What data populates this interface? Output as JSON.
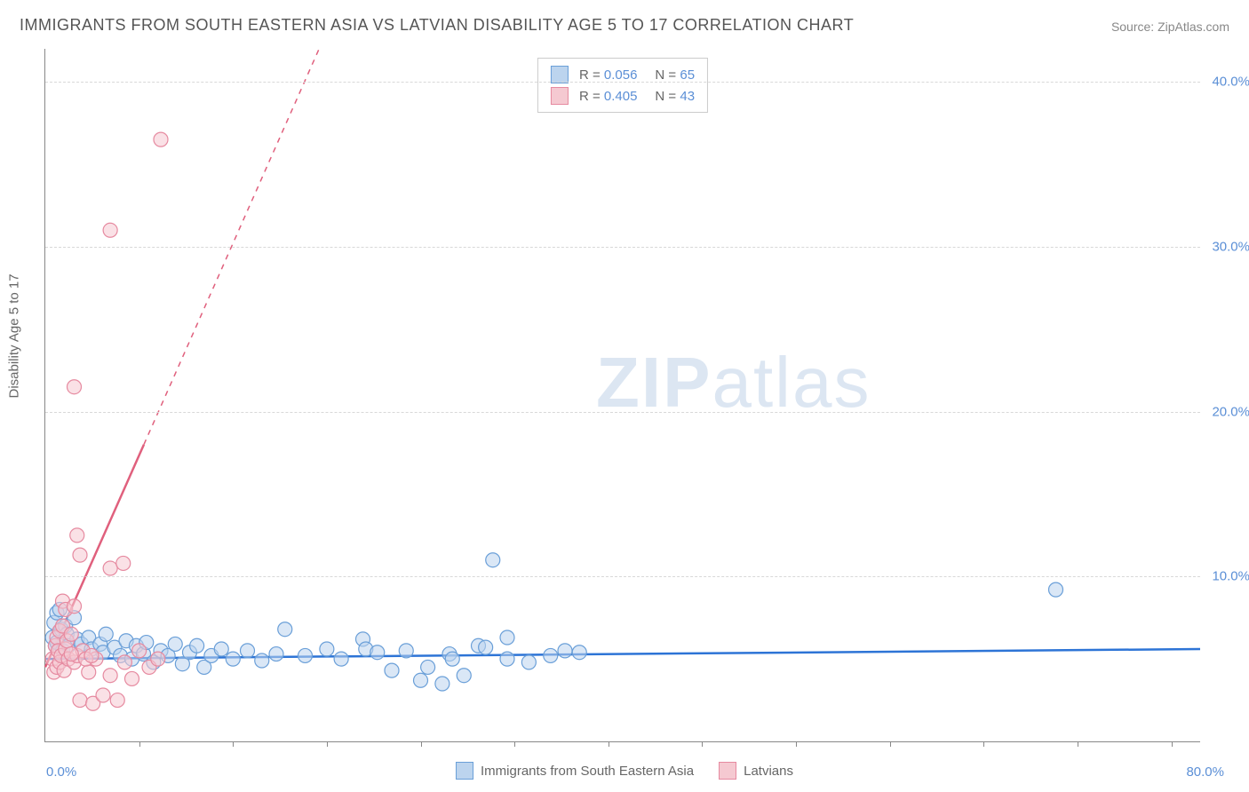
{
  "title": "IMMIGRANTS FROM SOUTH EASTERN ASIA VS LATVIAN DISABILITY AGE 5 TO 17 CORRELATION CHART",
  "source": "Source: ZipAtlas.com",
  "ylabel": "Disability Age 5 to 17",
  "watermark_zip": "ZIP",
  "watermark_atlas": "atlas",
  "chart": {
    "type": "scatter",
    "background_color": "#ffffff",
    "grid_color": "#d8d8d8",
    "axis_color": "#888888",
    "tick_label_color": "#5b8fd6",
    "xlim": [
      0,
      80
    ],
    "ylim": [
      0,
      42
    ],
    "xticks": [
      0,
      40,
      80
    ],
    "xtick_labels": [
      "0.0%",
      "",
      "80.0%"
    ],
    "xtick_minor": [
      6.5,
      13,
      19.5,
      26,
      32.5,
      39,
      45.5,
      52,
      58.5,
      65,
      71.5,
      78
    ],
    "yticks": [
      10,
      20,
      30,
      40
    ],
    "ytick_labels": [
      "10.0%",
      "20.0%",
      "30.0%",
      "40.0%"
    ],
    "marker_radius": 8,
    "marker_opacity": 0.55,
    "series": [
      {
        "name": "Immigrants from South Eastern Asia",
        "color_fill": "#bcd4ee",
        "color_stroke": "#6a9fd8",
        "R": "0.056",
        "N": "65",
        "trend": {
          "x1": 0,
          "y1": 5.0,
          "x2": 80,
          "y2": 5.6,
          "color": "#2d74d6",
          "width": 2.5
        },
        "points": [
          [
            0.5,
            6.3
          ],
          [
            0.6,
            7.2
          ],
          [
            0.7,
            5.8
          ],
          [
            0.8,
            7.8
          ],
          [
            0.8,
            6.0
          ],
          [
            1.0,
            8.0
          ],
          [
            1.1,
            6.8
          ],
          [
            1.2,
            5.5
          ],
          [
            1.4,
            7.0
          ],
          [
            1.5,
            6.5
          ],
          [
            1.6,
            5.8
          ],
          [
            2.0,
            7.5
          ],
          [
            2.2,
            6.2
          ],
          [
            2.5,
            5.9
          ],
          [
            3.0,
            6.3
          ],
          [
            3.2,
            5.6
          ],
          [
            3.8,
            5.9
          ],
          [
            4.0,
            5.4
          ],
          [
            4.2,
            6.5
          ],
          [
            4.8,
            5.7
          ],
          [
            5.2,
            5.2
          ],
          [
            5.6,
            6.1
          ],
          [
            6.0,
            5.0
          ],
          [
            6.3,
            5.8
          ],
          [
            6.8,
            5.3
          ],
          [
            7.0,
            6.0
          ],
          [
            7.5,
            4.8
          ],
          [
            8.0,
            5.5
          ],
          [
            8.5,
            5.2
          ],
          [
            9.0,
            5.9
          ],
          [
            9.5,
            4.7
          ],
          [
            10.0,
            5.4
          ],
          [
            10.5,
            5.8
          ],
          [
            11.0,
            4.5
          ],
          [
            11.5,
            5.2
          ],
          [
            12.2,
            5.6
          ],
          [
            13.0,
            5.0
          ],
          [
            14.0,
            5.5
          ],
          [
            15.0,
            4.9
          ],
          [
            16.0,
            5.3
          ],
          [
            16.6,
            6.8
          ],
          [
            18.0,
            5.2
          ],
          [
            19.5,
            5.6
          ],
          [
            20.5,
            5.0
          ],
          [
            22.0,
            6.2
          ],
          [
            22.2,
            5.6
          ],
          [
            23.0,
            5.4
          ],
          [
            24.0,
            4.3
          ],
          [
            26.0,
            3.7
          ],
          [
            25.0,
            5.5
          ],
          [
            26.5,
            4.5
          ],
          [
            27.5,
            3.5
          ],
          [
            28.0,
            5.3
          ],
          [
            28.2,
            5.0
          ],
          [
            29.0,
            4.0
          ],
          [
            30.0,
            5.8
          ],
          [
            30.5,
            5.7
          ],
          [
            31.0,
            11.0
          ],
          [
            32.0,
            5.0
          ],
          [
            32.0,
            6.3
          ],
          [
            33.5,
            4.8
          ],
          [
            35.0,
            5.2
          ],
          [
            36.0,
            5.5
          ],
          [
            37.0,
            5.4
          ],
          [
            70.0,
            9.2
          ]
        ]
      },
      {
        "name": "Latvians",
        "color_fill": "#f5c9d1",
        "color_stroke": "#e68aa0",
        "R": "0.405",
        "N": "43",
        "trend": {
          "x1": 0,
          "y1": 4.5,
          "x2": 22,
          "y2": 48,
          "color": "#e0607d",
          "width": 2.5
        },
        "points": [
          [
            0.5,
            5.0
          ],
          [
            0.6,
            4.2
          ],
          [
            0.7,
            5.8
          ],
          [
            0.8,
            6.3
          ],
          [
            0.8,
            4.5
          ],
          [
            0.9,
            5.5
          ],
          [
            1.0,
            6.7
          ],
          [
            1.0,
            4.8
          ],
          [
            1.1,
            5.2
          ],
          [
            1.2,
            7.0
          ],
          [
            1.3,
            4.3
          ],
          [
            1.4,
            5.6
          ],
          [
            1.5,
            6.1
          ],
          [
            1.6,
            5.0
          ],
          [
            1.8,
            6.5
          ],
          [
            2.0,
            4.8
          ],
          [
            2.2,
            5.2
          ],
          [
            2.4,
            2.5
          ],
          [
            2.6,
            5.5
          ],
          [
            3.0,
            4.2
          ],
          [
            3.3,
            2.3
          ],
          [
            3.5,
            5.0
          ],
          [
            4.0,
            2.8
          ],
          [
            4.5,
            4.0
          ],
          [
            5.0,
            2.5
          ],
          [
            5.5,
            4.8
          ],
          [
            6.0,
            3.8
          ],
          [
            7.2,
            4.5
          ],
          [
            1.2,
            8.5
          ],
          [
            1.4,
            8.0
          ],
          [
            2.0,
            8.2
          ],
          [
            2.2,
            12.5
          ],
          [
            2.4,
            11.3
          ],
          [
            4.5,
            10.5
          ],
          [
            5.4,
            10.8
          ],
          [
            1.8,
            5.3
          ],
          [
            2.8,
            5.0
          ],
          [
            3.2,
            5.2
          ],
          [
            2.0,
            21.5
          ],
          [
            4.5,
            31.0
          ],
          [
            8.0,
            36.5
          ],
          [
            6.5,
            5.5
          ],
          [
            7.8,
            5.0
          ]
        ]
      }
    ],
    "legend_bottom": [
      {
        "label": "Immigrants from South Eastern Asia",
        "fill": "#bcd4ee",
        "stroke": "#6a9fd8"
      },
      {
        "label": "Latvians",
        "fill": "#f5c9d1",
        "stroke": "#e68aa0"
      }
    ]
  }
}
